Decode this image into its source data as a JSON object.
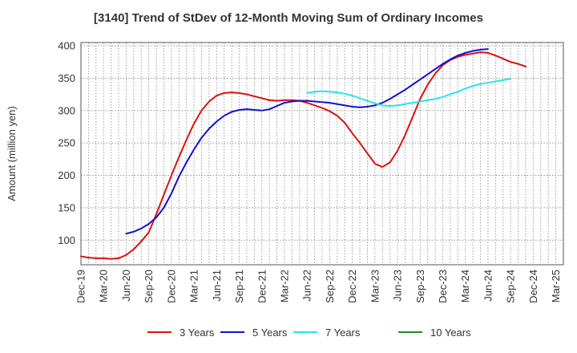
{
  "chart_data": {
    "type": "line",
    "title": "[3140]  Trend of StDev of 12-Month Moving Sum of Ordinary Incomes",
    "xlabel": "",
    "ylabel": "Amount (million yen)",
    "ylim": [
      62,
      405
    ],
    "yticks": [
      100,
      150,
      200,
      250,
      300,
      350,
      400
    ],
    "grid": true,
    "legend_position": "bottom",
    "start_month": "2019-12",
    "month_count": 64,
    "x_tick_labels": [
      "Dec-19",
      "Mar-20",
      "Jun-20",
      "Sep-20",
      "Dec-20",
      "Mar-21",
      "Jun-21",
      "Sep-21",
      "Dec-21",
      "Mar-22",
      "Jun-22",
      "Sep-22",
      "Dec-22",
      "Mar-23",
      "Jun-23",
      "Sep-23",
      "Dec-23",
      "Mar-24",
      "Jun-24",
      "Sep-24",
      "Dec-24",
      "Mar-25"
    ],
    "series": [
      {
        "name": "3 Years",
        "color": "#dd1111",
        "start_index": 0,
        "values": [
          75,
          73,
          72,
          72,
          71,
          72,
          77,
          86,
          98,
          112,
          140,
          170,
          200,
          228,
          255,
          280,
          300,
          314,
          323,
          327,
          328,
          327,
          325,
          322,
          319,
          316,
          315,
          316,
          316,
          315,
          312,
          308,
          304,
          299,
          292,
          281,
          265,
          250,
          234,
          218,
          213,
          220,
          238,
          262,
          290,
          318,
          340,
          357,
          370,
          378,
          383,
          386,
          388,
          390,
          389,
          385,
          380,
          375,
          372,
          368
        ]
      },
      {
        "name": "5 Years",
        "color": "#1111cc",
        "start_index": 6,
        "values": [
          110,
          113,
          118,
          125,
          135,
          150,
          172,
          198,
          220,
          240,
          258,
          272,
          283,
          292,
          298,
          301,
          302,
          301,
          300,
          302,
          307,
          312,
          314,
          315,
          315,
          314,
          313,
          312,
          310,
          308,
          306,
          305,
          306,
          308,
          312,
          318,
          325,
          332,
          340,
          348,
          356,
          364,
          372,
          379,
          385,
          389,
          392,
          394,
          395
        ]
      },
      {
        "name": "7 Years",
        "color": "#22e5ee",
        "start_index": 30,
        "values": [
          327,
          329,
          330,
          329,
          328,
          326,
          323,
          319,
          315,
          311,
          308,
          307,
          308,
          310,
          312,
          314,
          316,
          318,
          321,
          325,
          329,
          334,
          338,
          341,
          343,
          345,
          347,
          349
        ]
      },
      {
        "name": "10 Years",
        "color": "#228822",
        "start_index": 0,
        "values": []
      }
    ]
  }
}
